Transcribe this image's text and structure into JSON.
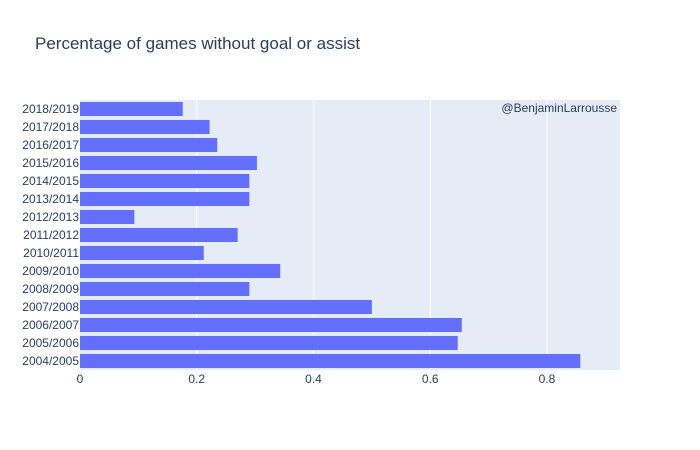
{
  "chart_data": {
    "type": "bar",
    "orientation": "horizontal",
    "title": "Percentage of games without goal or assist",
    "annotation": "@BenjaminLarrousse",
    "xlabel": "",
    "ylabel": "",
    "xlim": [
      0,
      0.925
    ],
    "xticks": [
      "0",
      "0.2",
      "0.4",
      "0.6",
      "0.8"
    ],
    "xtick_values": [
      0,
      0.2,
      0.4,
      0.6,
      0.8
    ],
    "grid": true,
    "legend": "none",
    "categories": [
      "2004/2005",
      "2005/2006",
      "2006/2007",
      "2007/2008",
      "2008/2009",
      "2009/2010",
      "2010/2011",
      "2011/2012",
      "2012/2013",
      "2013/2014",
      "2014/2015",
      "2015/2016",
      "2016/2017",
      "2017/2018",
      "2018/2019"
    ],
    "values": [
      0.857,
      0.647,
      0.654,
      0.5,
      0.29,
      0.343,
      0.212,
      0.27,
      0.093,
      0.29,
      0.29,
      0.303,
      0.235,
      0.222,
      0.176
    ],
    "colors": {
      "bar": "#636efa",
      "plot_bg": "#e5ecf6",
      "grid": "#ffffff",
      "text": "#2a3f5f"
    }
  }
}
